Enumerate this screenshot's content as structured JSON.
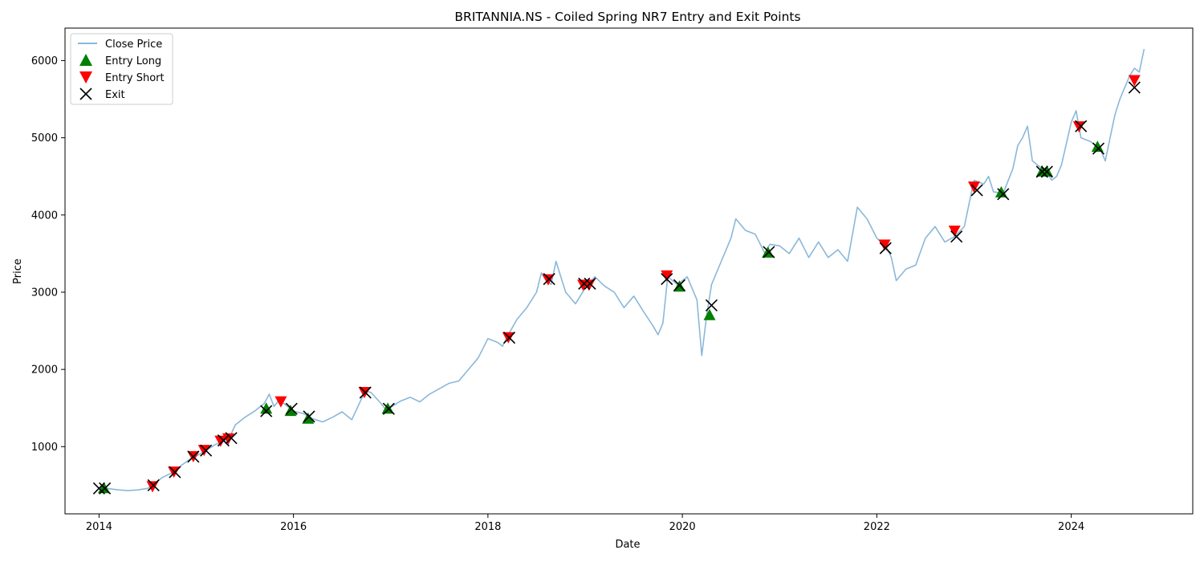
{
  "chart_data": {
    "type": "line",
    "title": "BRITANNIA.NS - Coiled Spring NR7 Entry and Exit Points",
    "xlabel": "Date",
    "ylabel": "Price",
    "xlim": [
      2013.65,
      2025.25
    ],
    "ylim": [
      130,
      6420
    ],
    "x_ticks": [
      2014,
      2016,
      2018,
      2020,
      2022,
      2024
    ],
    "y_ticks": [
      1000,
      2000,
      3000,
      4000,
      5000,
      6000
    ],
    "legend_position": "top-left",
    "grid": false,
    "legend": [
      {
        "label": "Close Price",
        "kind": "line",
        "color": "#8ab8d9"
      },
      {
        "label": "Entry Long",
        "kind": "triangle-up",
        "color": "#008000"
      },
      {
        "label": "Entry Short",
        "kind": "triangle-down",
        "color": "#ff0000"
      },
      {
        "label": "Exit",
        "kind": "x",
        "color": "#000000"
      }
    ],
    "series": [
      {
        "name": "Close Price",
        "color": "#8ab8d9",
        "points": [
          [
            2014.0,
            470
          ],
          [
            2014.1,
            455
          ],
          [
            2014.2,
            440
          ],
          [
            2014.3,
            430
          ],
          [
            2014.4,
            440
          ],
          [
            2014.5,
            460
          ],
          [
            2014.55,
            500
          ],
          [
            2014.65,
            600
          ],
          [
            2014.75,
            660
          ],
          [
            2014.85,
            760
          ],
          [
            2014.95,
            850
          ],
          [
            2015.0,
            880
          ],
          [
            2015.1,
            950
          ],
          [
            2015.2,
            1030
          ],
          [
            2015.3,
            1080
          ],
          [
            2015.35,
            1140
          ],
          [
            2015.4,
            1280
          ],
          [
            2015.5,
            1380
          ],
          [
            2015.6,
            1460
          ],
          [
            2015.7,
            1560
          ],
          [
            2015.75,
            1680
          ],
          [
            2015.8,
            1520
          ],
          [
            2015.85,
            1600
          ],
          [
            2015.9,
            1560
          ],
          [
            2016.0,
            1460
          ],
          [
            2016.1,
            1430
          ],
          [
            2016.2,
            1360
          ],
          [
            2016.3,
            1320
          ],
          [
            2016.4,
            1380
          ],
          [
            2016.5,
            1450
          ],
          [
            2016.6,
            1350
          ],
          [
            2016.7,
            1620
          ],
          [
            2016.75,
            1720
          ],
          [
            2016.8,
            1700
          ],
          [
            2016.9,
            1560
          ],
          [
            2016.95,
            1480
          ],
          [
            2017.0,
            1510
          ],
          [
            2017.1,
            1590
          ],
          [
            2017.2,
            1640
          ],
          [
            2017.3,
            1580
          ],
          [
            2017.4,
            1680
          ],
          [
            2017.5,
            1750
          ],
          [
            2017.6,
            1820
          ],
          [
            2017.7,
            1850
          ],
          [
            2017.8,
            2000
          ],
          [
            2017.9,
            2150
          ],
          [
            2018.0,
            2400
          ],
          [
            2018.1,
            2350
          ],
          [
            2018.15,
            2300
          ],
          [
            2018.2,
            2430
          ],
          [
            2018.3,
            2650
          ],
          [
            2018.4,
            2800
          ],
          [
            2018.5,
            3000
          ],
          [
            2018.55,
            3250
          ],
          [
            2018.6,
            3150
          ],
          [
            2018.65,
            3100
          ],
          [
            2018.7,
            3400
          ],
          [
            2018.75,
            3200
          ],
          [
            2018.8,
            3000
          ],
          [
            2018.9,
            2850
          ],
          [
            2019.0,
            3050
          ],
          [
            2019.1,
            3200
          ],
          [
            2019.2,
            3080
          ],
          [
            2019.3,
            3000
          ],
          [
            2019.4,
            2800
          ],
          [
            2019.5,
            2950
          ],
          [
            2019.6,
            2750
          ],
          [
            2019.7,
            2560
          ],
          [
            2019.75,
            2450
          ],
          [
            2019.8,
            2600
          ],
          [
            2019.85,
            3200
          ],
          [
            2019.9,
            3150
          ],
          [
            2019.95,
            3100
          ],
          [
            2020.05,
            3200
          ],
          [
            2020.15,
            2900
          ],
          [
            2020.2,
            2180
          ],
          [
            2020.25,
            2700
          ],
          [
            2020.3,
            3100
          ],
          [
            2020.4,
            3400
          ],
          [
            2020.5,
            3700
          ],
          [
            2020.55,
            3950
          ],
          [
            2020.65,
            3800
          ],
          [
            2020.75,
            3750
          ],
          [
            2020.85,
            3500
          ],
          [
            2020.9,
            3620
          ],
          [
            2021.0,
            3600
          ],
          [
            2021.1,
            3500
          ],
          [
            2021.2,
            3700
          ],
          [
            2021.3,
            3450
          ],
          [
            2021.4,
            3650
          ],
          [
            2021.5,
            3450
          ],
          [
            2021.6,
            3550
          ],
          [
            2021.7,
            3400
          ],
          [
            2021.8,
            4100
          ],
          [
            2021.9,
            3950
          ],
          [
            2022.0,
            3700
          ],
          [
            2022.1,
            3580
          ],
          [
            2022.15,
            3450
          ],
          [
            2022.2,
            3150
          ],
          [
            2022.3,
            3300
          ],
          [
            2022.4,
            3350
          ],
          [
            2022.5,
            3700
          ],
          [
            2022.6,
            3850
          ],
          [
            2022.7,
            3650
          ],
          [
            2022.8,
            3720
          ],
          [
            2022.9,
            3850
          ],
          [
            2022.95,
            4150
          ],
          [
            2023.0,
            4450
          ],
          [
            2023.1,
            4400
          ],
          [
            2023.15,
            4500
          ],
          [
            2023.2,
            4300
          ],
          [
            2023.3,
            4280
          ],
          [
            2023.4,
            4600
          ],
          [
            2023.45,
            4900
          ],
          [
            2023.5,
            5000
          ],
          [
            2023.55,
            5150
          ],
          [
            2023.6,
            4700
          ],
          [
            2023.7,
            4600
          ],
          [
            2023.75,
            4550
          ],
          [
            2023.8,
            4450
          ],
          [
            2023.85,
            4500
          ],
          [
            2023.9,
            4650
          ],
          [
            2024.0,
            5200
          ],
          [
            2024.05,
            5350
          ],
          [
            2024.1,
            5000
          ],
          [
            2024.2,
            4950
          ],
          [
            2024.3,
            4850
          ],
          [
            2024.35,
            4700
          ],
          [
            2024.4,
            5000
          ],
          [
            2024.45,
            5300
          ],
          [
            2024.5,
            5500
          ],
          [
            2024.55,
            5650
          ],
          [
            2024.6,
            5800
          ],
          [
            2024.65,
            5900
          ],
          [
            2024.7,
            5850
          ],
          [
            2024.75,
            6150
          ]
        ]
      },
      {
        "name": "Entry Long",
        "color": "#008000",
        "points": [
          [
            2014.05,
            460
          ],
          [
            2015.72,
            1490
          ],
          [
            2015.97,
            1460
          ],
          [
            2016.15,
            1360
          ],
          [
            2016.97,
            1490
          ],
          [
            2019.97,
            3070
          ],
          [
            2020.28,
            2700
          ],
          [
            2020.88,
            3510
          ],
          [
            2023.28,
            4290
          ],
          [
            2023.7,
            4560
          ],
          [
            2023.75,
            4560
          ],
          [
            2024.27,
            4880
          ]
        ]
      },
      {
        "name": "Entry Short",
        "color": "#ff0000",
        "points": [
          [
            2014.55,
            490
          ],
          [
            2014.77,
            680
          ],
          [
            2014.97,
            880
          ],
          [
            2015.08,
            960
          ],
          [
            2015.25,
            1080
          ],
          [
            2015.33,
            1110
          ],
          [
            2015.87,
            1590
          ],
          [
            2016.73,
            1710
          ],
          [
            2018.21,
            2420
          ],
          [
            2018.62,
            3170
          ],
          [
            2018.98,
            3100
          ],
          [
            2019.04,
            3100
          ],
          [
            2019.84,
            3220
          ],
          [
            2022.08,
            3620
          ],
          [
            2022.8,
            3800
          ],
          [
            2023.0,
            4370
          ],
          [
            2024.08,
            5150
          ],
          [
            2024.65,
            5750
          ]
        ]
      }
    ],
    "exits": [
      [
        2014.0,
        460
      ],
      [
        2014.06,
        460
      ],
      [
        2014.56,
        500
      ],
      [
        2014.78,
        670
      ],
      [
        2014.97,
        870
      ],
      [
        2015.1,
        950
      ],
      [
        2015.28,
        1080
      ],
      [
        2015.36,
        1110
      ],
      [
        2015.72,
        1460
      ],
      [
        2015.98,
        1490
      ],
      [
        2016.16,
        1390
      ],
      [
        2016.74,
        1700
      ],
      [
        2016.98,
        1490
      ],
      [
        2018.22,
        2410
      ],
      [
        2018.63,
        3170
      ],
      [
        2018.99,
        3110
      ],
      [
        2019.05,
        3110
      ],
      [
        2019.84,
        3170
      ],
      [
        2019.97,
        3090
      ],
      [
        2020.3,
        2830
      ],
      [
        2020.89,
        3520
      ],
      [
        2022.09,
        3570
      ],
      [
        2022.82,
        3720
      ],
      [
        2023.03,
        4320
      ],
      [
        2023.3,
        4270
      ],
      [
        2023.7,
        4560
      ],
      [
        2023.75,
        4560
      ],
      [
        2024.1,
        5150
      ],
      [
        2024.28,
        4860
      ],
      [
        2024.65,
        5650
      ]
    ]
  }
}
